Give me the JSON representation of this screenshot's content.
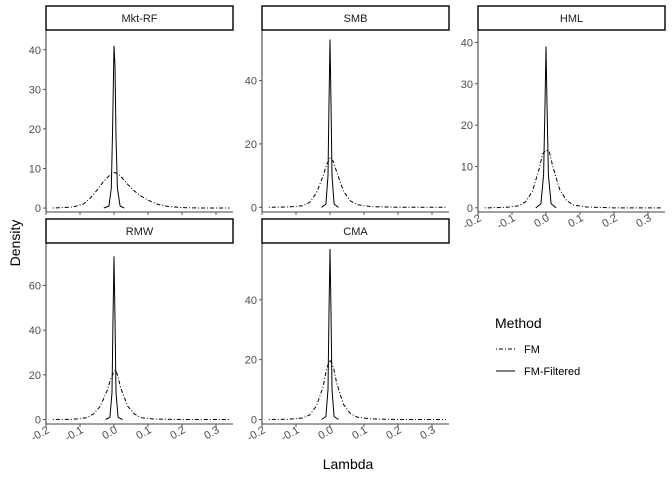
{
  "chart_data": {
    "type": "line",
    "xlabel": "Lambda",
    "ylabel": "Density",
    "xlim": [
      -0.2,
      0.35
    ],
    "xticks": [
      -0.2,
      -0.1,
      0.0,
      0.1,
      0.2,
      0.3
    ],
    "xtick_labels": [
      "-0.2",
      "-0.1",
      "0.0",
      "0.1",
      "0.2",
      "0.3"
    ],
    "legend": {
      "title": "Method",
      "position": "right",
      "entries": [
        {
          "label": "FM",
          "linetype": "dotdash"
        },
        {
          "label": "FM-Filtered",
          "linetype": "solid"
        }
      ]
    },
    "grid": false,
    "facets": [
      {
        "title": "Mkt-RF",
        "ylim": [
          -1,
          45
        ],
        "yticks": [
          0,
          10,
          20,
          30,
          40
        ],
        "series": [
          {
            "name": "FM",
            "linetype": "dotdash",
            "x": [
              -0.18,
              -0.15,
              -0.12,
              -0.09,
              -0.07,
              -0.05,
              -0.03,
              -0.01,
              0.0,
              0.01,
              0.02,
              0.04,
              0.06,
              0.08,
              0.1,
              0.13,
              0.16,
              0.2,
              0.25,
              0.3,
              0.34
            ],
            "y": [
              0,
              0.1,
              0.3,
              1,
              2.5,
              4.5,
              6.8,
              8.5,
              9,
              8.7,
              8,
              6,
              4.3,
              3,
              2,
              0.9,
              0.4,
              0.1,
              0,
              0,
              0
            ]
          },
          {
            "name": "FM-Filtered",
            "linetype": "solid",
            "x": [
              -0.03,
              -0.015,
              -0.008,
              -0.004,
              0.0,
              0.003,
              0.006,
              0.01,
              0.018,
              0.03
            ],
            "y": [
              0,
              0.5,
              5,
              20,
              41,
              36,
              18,
              5,
              0.5,
              0
            ]
          }
        ]
      },
      {
        "title": "SMB",
        "ylim": [
          -1.5,
          56
        ],
        "yticks": [
          0,
          20,
          40
        ],
        "series": [
          {
            "name": "FM",
            "linetype": "dotdash",
            "x": [
              -0.18,
              -0.12,
              -0.08,
              -0.06,
              -0.04,
              -0.02,
              -0.01,
              0.0,
              0.01,
              0.02,
              0.04,
              0.06,
              0.08,
              0.12,
              0.2,
              0.34
            ],
            "y": [
              0,
              0.1,
              0.5,
              1.5,
              4.5,
              10,
              13.5,
              15.5,
              14.5,
              11,
              5,
              2,
              0.8,
              0.2,
              0,
              0
            ]
          },
          {
            "name": "FM-Filtered",
            "linetype": "solid",
            "x": [
              -0.025,
              -0.012,
              -0.006,
              -0.003,
              0.0,
              0.003,
              0.006,
              0.012,
              0.025
            ],
            "y": [
              0,
              1,
              10,
              33,
              53,
              33,
              10,
              1,
              0
            ]
          }
        ]
      },
      {
        "title": "HML",
        "ylim": [
          -1,
          43
        ],
        "yticks": [
          0,
          10,
          20,
          30,
          40
        ],
        "series": [
          {
            "name": "FM",
            "linetype": "dotdash",
            "x": [
              -0.18,
              -0.12,
              -0.08,
              -0.06,
              -0.04,
              -0.02,
              -0.01,
              0.0,
              0.01,
              0.02,
              0.04,
              0.06,
              0.08,
              0.12,
              0.2,
              0.34
            ],
            "y": [
              0,
              0.1,
              0.5,
              1.5,
              4,
              9.5,
              13,
              14,
              13.5,
              10,
              4.5,
              1.8,
              0.7,
              0.2,
              0,
              0
            ]
          },
          {
            "name": "FM-Filtered",
            "linetype": "solid",
            "x": [
              -0.03,
              -0.015,
              -0.007,
              -0.003,
              0.0,
              0.003,
              0.007,
              0.015,
              0.03
            ],
            "y": [
              0,
              1,
              8,
              25,
              39,
              25,
              8,
              1,
              0
            ]
          }
        ]
      },
      {
        "title": "RMW",
        "ylim": [
          -2,
          79
        ],
        "yticks": [
          0,
          20,
          40,
          60
        ],
        "series": [
          {
            "name": "FM",
            "linetype": "dotdash",
            "x": [
              -0.18,
              -0.12,
              -0.08,
              -0.06,
              -0.04,
              -0.02,
              -0.01,
              0.0,
              0.005,
              0.01,
              0.02,
              0.04,
              0.06,
              0.08,
              0.12,
              0.2,
              0.34
            ],
            "y": [
              0,
              0.1,
              0.8,
              2.5,
              6,
              13,
              18,
              21.5,
              22,
              20,
              14,
              6,
              2.5,
              0.8,
              0.2,
              0,
              0
            ]
          },
          {
            "name": "FM-Filtered",
            "linetype": "solid",
            "x": [
              -0.025,
              -0.012,
              -0.006,
              -0.003,
              0.0,
              0.003,
              0.006,
              0.012,
              0.025
            ],
            "y": [
              0,
              1,
              12,
              45,
              73,
              45,
              12,
              1,
              0
            ]
          }
        ]
      },
      {
        "title": "CMA",
        "ylim": [
          -1.5,
          59
        ],
        "yticks": [
          0,
          20,
          40
        ],
        "series": [
          {
            "name": "FM",
            "linetype": "dotdash",
            "x": [
              -0.18,
              -0.12,
              -0.08,
              -0.06,
              -0.04,
              -0.02,
              -0.01,
              0.0,
              0.01,
              0.02,
              0.04,
              0.06,
              0.08,
              0.12,
              0.2,
              0.34
            ],
            "y": [
              0,
              0.1,
              0.5,
              1.5,
              4.5,
              11,
              17,
              20,
              17.5,
              12,
              5,
              2,
              0.8,
              0.2,
              0,
              0
            ]
          },
          {
            "name": "FM-Filtered",
            "linetype": "solid",
            "x": [
              -0.025,
              -0.012,
              -0.006,
              -0.003,
              0.0,
              0.003,
              0.006,
              0.012,
              0.025
            ],
            "y": [
              0,
              1,
              10,
              36,
              57,
              36,
              10,
              1,
              0
            ]
          }
        ]
      }
    ]
  }
}
